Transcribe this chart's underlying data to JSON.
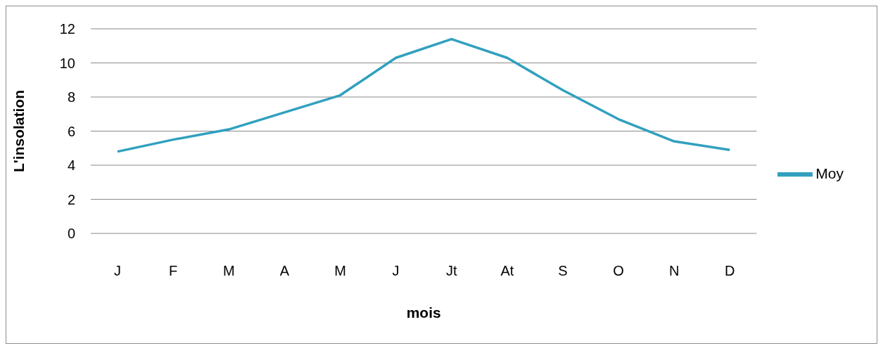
{
  "chart_data": {
    "type": "line",
    "xlabel": "mois",
    "ylabel": "L'insolation",
    "categories": [
      "J",
      "F",
      "M",
      "A",
      "M",
      "J",
      "Jt",
      "At",
      "S",
      "O",
      "N",
      "D"
    ],
    "series": [
      {
        "name": "Moy",
        "color": "#31a0bf",
        "values": [
          4.8,
          5.5,
          6.1,
          7.1,
          8.1,
          10.3,
          11.4,
          10.3,
          8.4,
          6.7,
          5.4,
          4.9
        ]
      }
    ],
    "ylim": [
      0,
      12
    ],
    "yticks": [
      0,
      2,
      4,
      6,
      8,
      10,
      12
    ],
    "grid": "y",
    "legend": "right",
    "marker": "none",
    "line_style": "solid"
  }
}
